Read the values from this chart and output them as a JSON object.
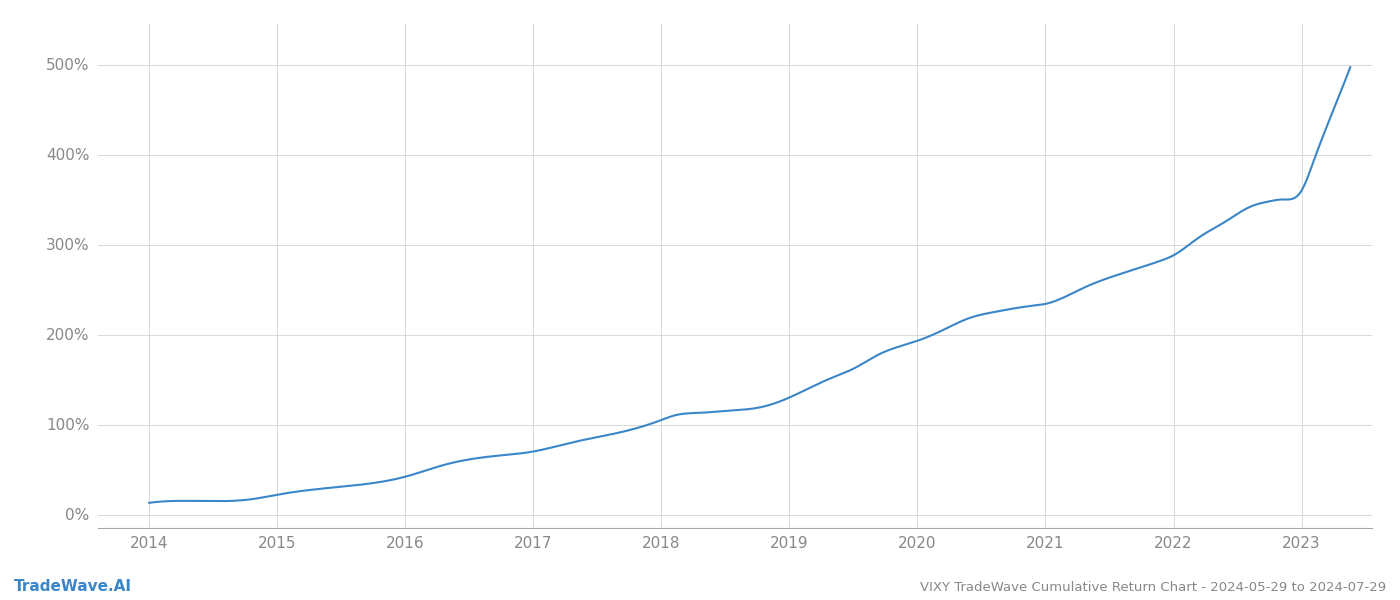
{
  "title": "VIXY TradeWave Cumulative Return Chart - 2024-05-29 to 2024-07-29",
  "watermark": "TradeWave.AI",
  "line_color": "#3a86c8",
  "background_color": "#ffffff",
  "x_years": [
    2014,
    2015,
    2016,
    2017,
    2018,
    2019,
    2020,
    2021,
    2022,
    2023
  ],
  "y_ticks": [
    0,
    100,
    200,
    300,
    400,
    500
  ],
  "y_tick_labels": [
    "0%",
    "100%",
    "200%",
    "300%",
    "400%",
    "500%"
  ],
  "ylim": [
    -15,
    545
  ],
  "xlim": [
    2013.6,
    2023.55
  ],
  "key_x": [
    2014.0,
    2014.4,
    2014.8,
    2015.0,
    2015.3,
    2015.7,
    2016.0,
    2016.3,
    2016.7,
    2017.0,
    2017.3,
    2017.7,
    2018.0,
    2018.1,
    2018.3,
    2018.5,
    2018.8,
    2019.0,
    2019.3,
    2019.5,
    2019.7,
    2020.0,
    2020.2,
    2020.4,
    2020.6,
    2020.9,
    2021.0,
    2021.3,
    2021.6,
    2021.9,
    2022.0,
    2022.2,
    2022.4,
    2022.6,
    2022.75,
    2022.85,
    2023.0,
    2023.1,
    2023.25,
    2023.38
  ],
  "key_y": [
    13,
    15,
    17,
    22,
    28,
    34,
    42,
    55,
    65,
    70,
    80,
    92,
    105,
    110,
    113,
    115,
    120,
    130,
    150,
    162,
    178,
    193,
    205,
    218,
    225,
    232,
    234,
    252,
    268,
    282,
    288,
    308,
    325,
    342,
    348,
    350,
    360,
    395,
    450,
    497
  ]
}
